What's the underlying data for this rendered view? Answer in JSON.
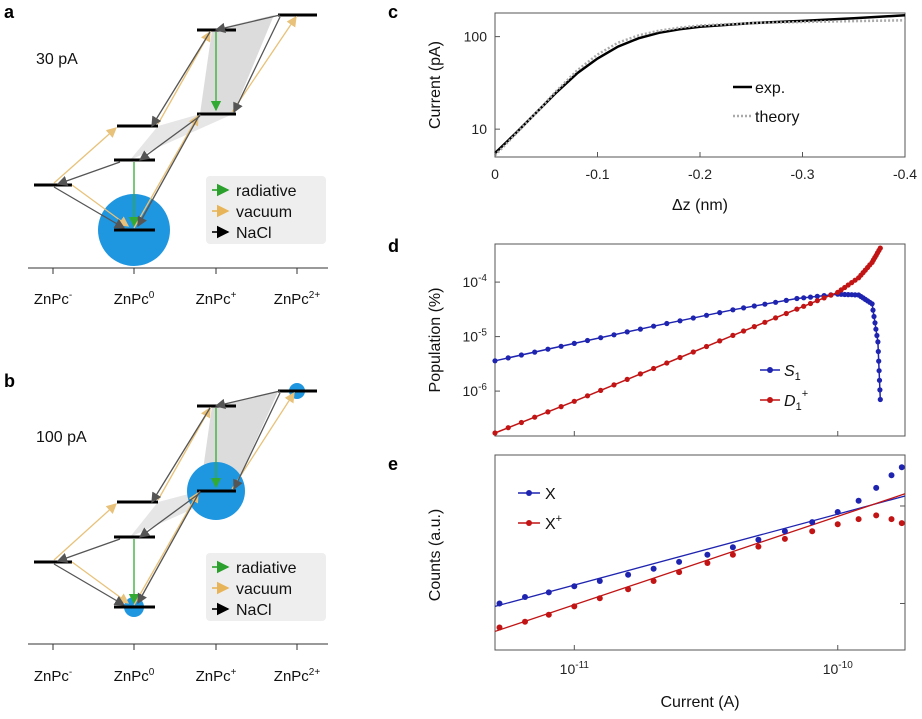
{
  "panel_letters": {
    "a": "a",
    "b": "b",
    "c": "c",
    "d": "d",
    "e": "e"
  },
  "energy_diagram": {
    "categories": [
      {
        "base": "ZnPc",
        "sup": "-"
      },
      {
        "base": "ZnPc",
        "sup": "0"
      },
      {
        "base": "ZnPc",
        "sup": "+"
      },
      {
        "base": "ZnPc",
        "sup": "2+"
      }
    ],
    "legend": [
      {
        "label": "radiative",
        "color": "#2ca02c"
      },
      {
        "label": "vacuum",
        "color": "#e8b45a"
      },
      {
        "label": "NaCl",
        "color": "#000000"
      }
    ],
    "panel_a": {
      "current_label": "30 pA"
    },
    "panel_b": {
      "current_label": "100 pA"
    },
    "colors": {
      "blob": "#1f96e0",
      "shade": "#d9d9d9",
      "nacl_arrow": "#555555",
      "vacuum_arrow": "#e8c27a",
      "radiative_arrow": "#33aa33"
    }
  },
  "chart_data": [
    {
      "id": "c",
      "type": "line",
      "xlabel": "Δz (nm)",
      "ylabel": "Current (pA)",
      "xlim": [
        0,
        -0.4
      ],
      "ylim": [
        5,
        180
      ],
      "yscale": "log",
      "xticks": [
        "0",
        "-0.1",
        "-0.2",
        "-0.3",
        "-0.4"
      ],
      "xtick_values": [
        0,
        -0.1,
        -0.2,
        -0.3,
        -0.4
      ],
      "yticks": [
        "10",
        "100"
      ],
      "ytick_values": [
        10,
        100
      ],
      "legend_position": "center-right",
      "series": [
        {
          "name": "exp.",
          "color": "#000000",
          "style": "solid",
          "x": [
            0,
            -0.02,
            -0.04,
            -0.06,
            -0.08,
            -0.1,
            -0.12,
            -0.14,
            -0.16,
            -0.18,
            -0.2,
            -0.25,
            -0.3,
            -0.35,
            -0.4
          ],
          "y": [
            5.5,
            9,
            15,
            25,
            40,
            58,
            78,
            96,
            110,
            120,
            128,
            140,
            148,
            158,
            170
          ]
        },
        {
          "name": "theory",
          "color": "#aaaaaa",
          "style": "dotted",
          "x": [
            0,
            -0.02,
            -0.04,
            -0.06,
            -0.08,
            -0.1,
            -0.12,
            -0.14,
            -0.16,
            -0.18,
            -0.2,
            -0.25,
            -0.3,
            -0.35,
            -0.4
          ],
          "y": [
            5.2,
            8.8,
            15,
            26,
            43,
            64,
            86,
            103,
            116,
            125,
            132,
            140,
            144,
            147,
            150
          ]
        }
      ]
    },
    {
      "id": "d",
      "type": "line",
      "xlabel": "",
      "ylabel": "Population (%)",
      "xscale": "log",
      "yscale": "log",
      "xlim": [
        5e-12,
        1.8e-10
      ],
      "ylim": [
        1.5e-07,
        0.0005
      ],
      "ytick_values": [
        1e-06,
        1e-05,
        0.0001
      ],
      "yticks": [
        {
          "base": "10",
          "sup": "-6"
        },
        {
          "base": "10",
          "sup": "-5"
        },
        {
          "base": "10",
          "sup": "-4"
        }
      ],
      "legend_position": "lower-right",
      "series": [
        {
          "name": "S",
          "name_sub": "1",
          "color": "#1f24b0",
          "x": [
            5e-12,
            1e-11,
            2e-11,
            4e-11,
            7e-11,
            1e-10,
            1.2e-10,
            1.35e-10,
            1.42e-10,
            1.45e-10
          ],
          "y": [
            3.6e-06,
            7.5e-06,
            1.55e-05,
            3.1e-05,
            5e-05,
            6e-05,
            5.8e-05,
            4e-05,
            8e-06,
            7e-07
          ]
        },
        {
          "name": "D",
          "name_sub": "1",
          "name_sup": "+",
          "color": "#c21414",
          "x": [
            5e-12,
            1e-11,
            2e-11,
            4e-11,
            7e-11,
            1e-10,
            1.2e-10,
            1.35e-10,
            1.45e-10
          ],
          "y": [
            1.7e-07,
            6.5e-07,
            2.6e-06,
            1.05e-05,
            3.2e-05,
            6.5e-05,
            0.00012,
            0.00023,
            0.00042
          ]
        }
      ]
    },
    {
      "id": "e",
      "type": "scatter",
      "xlabel": "Current (A)",
      "ylabel": "Counts (a.u.)",
      "xscale": "log",
      "yscale": "log",
      "xlim": [
        5e-12,
        1.8e-10
      ],
      "ylim": [
        1,
        100
      ],
      "xtick_values": [
        1e-11,
        1e-10
      ],
      "xticks": [
        {
          "base": "10",
          "sup": "-11"
        },
        {
          "base": "10",
          "sup": "-10"
        }
      ],
      "legend_position": "top-left",
      "series": [
        {
          "name": "X",
          "color": "#1f24b0",
          "x": [
            5.2e-12,
            6.5e-12,
            8e-12,
            1e-11,
            1.25e-11,
            1.6e-11,
            2e-11,
            2.5e-11,
            3.2e-11,
            4e-11,
            5e-11,
            6.3e-11,
            8e-11,
            1e-10,
            1.2e-10,
            1.4e-10,
            1.6e-10,
            1.75e-10
          ],
          "y": [
            3.0,
            3.5,
            3.9,
            4.5,
            5.1,
            5.9,
            6.8,
            8.0,
            9.5,
            11.3,
            13.5,
            16.5,
            20.5,
            26,
            34,
            46,
            62,
            75
          ]
        },
        {
          "name": "X",
          "name_sup": "+",
          "color": "#c21414",
          "x": [
            5.2e-12,
            6.5e-12,
            8e-12,
            1e-11,
            1.25e-11,
            1.6e-11,
            2e-11,
            2.5e-11,
            3.2e-11,
            4e-11,
            5e-11,
            6.3e-11,
            8e-11,
            1e-10,
            1.2e-10,
            1.4e-10,
            1.6e-10,
            1.75e-10
          ],
          "y": [
            1.7,
            1.95,
            2.3,
            2.8,
            3.4,
            4.2,
            5.1,
            6.3,
            7.8,
            9.5,
            11.5,
            13.8,
            16.5,
            19.5,
            22,
            24,
            22,
            20
          ]
        }
      ],
      "fit_lines": [
        {
          "series": "X",
          "color": "#1f24b0",
          "x": [
            5e-12,
            1.8e-10
          ],
          "y": [
            2.8,
            38
          ]
        },
        {
          "series": "X+",
          "color": "#c21414",
          "x": [
            5e-12,
            1.8e-10
          ],
          "y": [
            1.55,
            40
          ]
        }
      ]
    }
  ]
}
